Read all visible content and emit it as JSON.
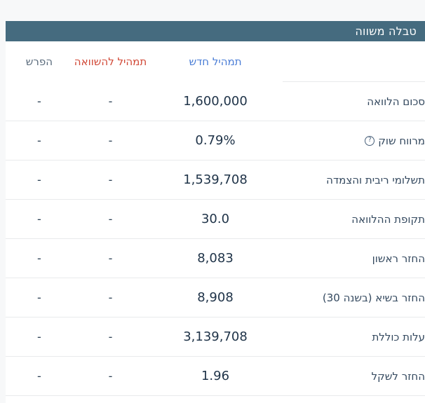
{
  "page": {
    "title": "טבלה משווה"
  },
  "colors": {
    "title_bar_bg": "#456b7f",
    "title_text": "#ffffff",
    "new_mix_header": "#4a7dd6",
    "compare_header": "#d14836",
    "diff_header": "#5a6b7c",
    "value_text": "#203449",
    "label_text": "#33485e",
    "divider": "#e9eaec"
  },
  "table": {
    "columns": {
      "label": "",
      "new_mix": "תמהיל חדש",
      "compare": "תמהיל להשוואה",
      "diff": "הפרש"
    },
    "help_icon_glyph": "?",
    "rows": [
      {
        "label": "סכום הלוואה",
        "new_mix": "1,600,000",
        "compare": "-",
        "diff": "-"
      },
      {
        "label": "מרווח שוק",
        "new_mix": "0.79%",
        "compare": "-",
        "diff": "-"
      },
      {
        "label": "תשלומי ריבית והצמדה",
        "new_mix": "1,539,708",
        "compare": "-",
        "diff": "-"
      },
      {
        "label": "תקופת ההלוואה",
        "new_mix": "30.0",
        "compare": "-",
        "diff": "-"
      },
      {
        "label": "החזר ראשון",
        "new_mix": "8,083",
        "compare": "-",
        "diff": "-"
      },
      {
        "label": "החזר בשיא (בשנה 30)",
        "new_mix": "8,908",
        "compare": "-",
        "diff": "-"
      },
      {
        "label": "עלות כוללת",
        "new_mix": "3,139,708",
        "compare": "-",
        "diff": "-"
      },
      {
        "label": "החזר לשקל",
        "new_mix": "1.96",
        "compare": "-",
        "diff": "-"
      }
    ]
  }
}
